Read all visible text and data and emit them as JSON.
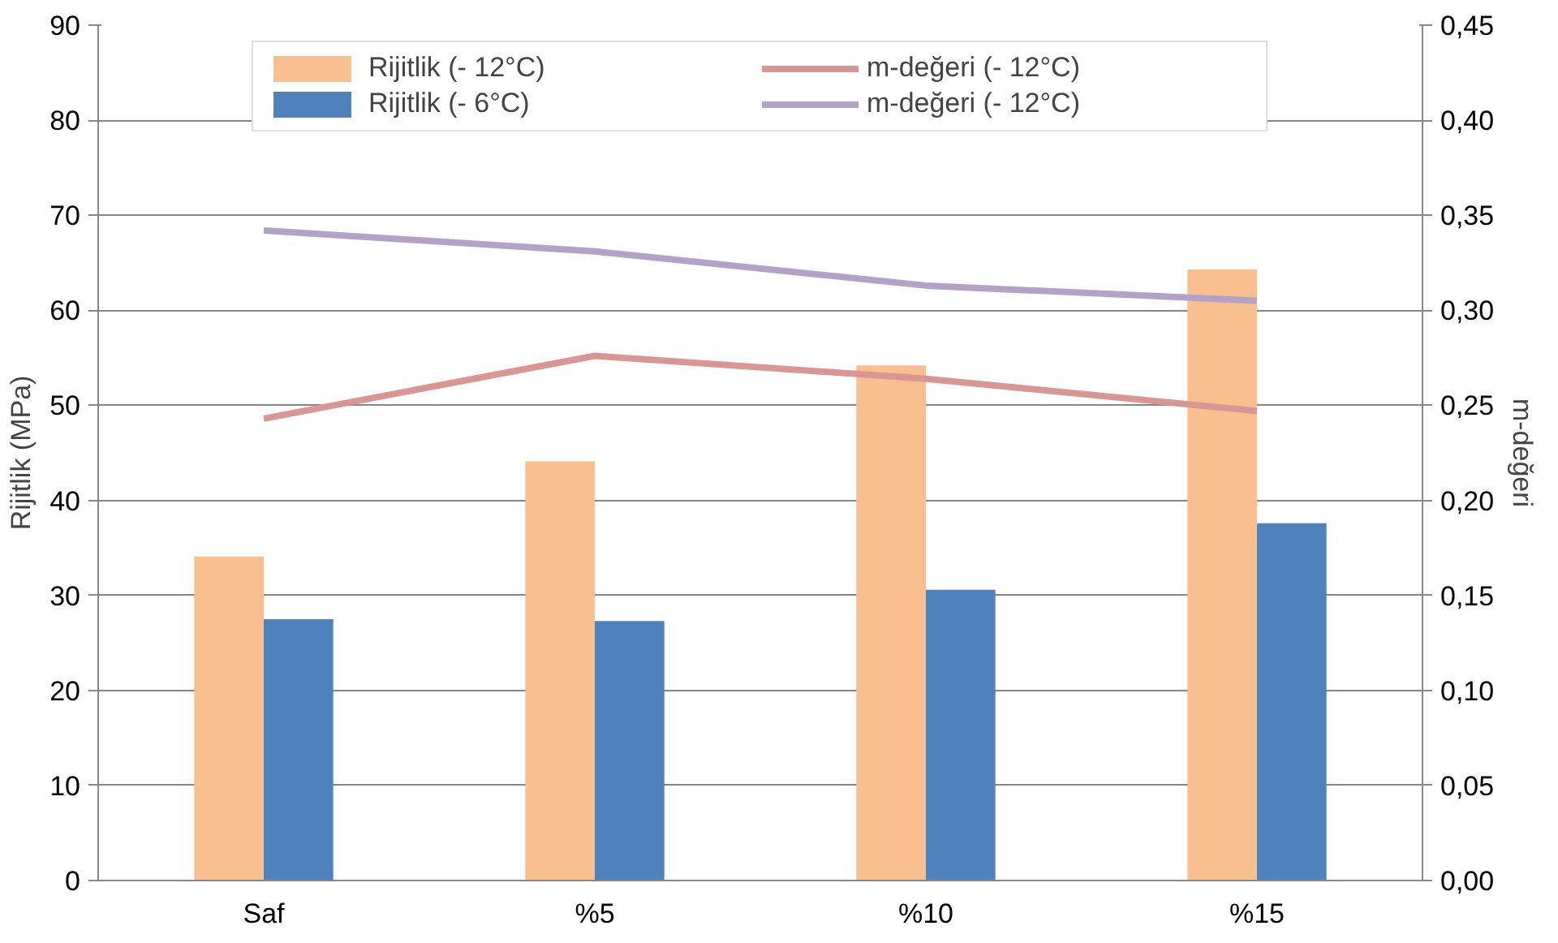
{
  "chart_data": {
    "type": "bar",
    "categories": [
      "Saf",
      "%5",
      "%10",
      "%15"
    ],
    "ylabel": "Rijitlik (MPa)",
    "y2label": "m-değeri",
    "ylim": [
      0,
      90
    ],
    "yticks": [
      0,
      10,
      20,
      30,
      40,
      50,
      60,
      70,
      80,
      90
    ],
    "y2lim": [
      0,
      0.45
    ],
    "y2ticks": [
      {
        "value": 0,
        "label": "0,00"
      },
      {
        "value": 0.05,
        "label": "0,05"
      },
      {
        "value": 0.1,
        "label": "0,10"
      },
      {
        "value": 0.15,
        "label": "0,15"
      },
      {
        "value": 0.2,
        "label": "0,20"
      },
      {
        "value": 0.25,
        "label": "0,25"
      },
      {
        "value": 0.3,
        "label": "0,30"
      },
      {
        "value": 0.35,
        "label": "0,35"
      },
      {
        "value": 0.4,
        "label": "0,40"
      },
      {
        "value": 0.45,
        "label": "0,45"
      }
    ],
    "grid": "y",
    "legend": "top",
    "series": [
      {
        "name": "Rijitlik (- 12°C)",
        "color": "#f9bf8f",
        "values": [
          34.1,
          44.1,
          54.2,
          64.3
        ]
      },
      {
        "name": "Rijitlik (- 6°C)",
        "color": "#4f81bd",
        "values": [
          27.5,
          27.3,
          30.6,
          37.6
        ]
      },
      {
        "name": "m-değeri (- 12°C)",
        "type": "line",
        "axis": "y2",
        "color": "#d99694",
        "values": [
          0.243,
          0.276,
          0.264,
          0.247
        ]
      },
      {
        "name": "m-değeri (- 12°C)",
        "type": "line",
        "axis": "y2",
        "color": "#b3a2c7",
        "values": [
          0.342,
          0.331,
          0.313,
          0.305
        ]
      }
    ]
  }
}
